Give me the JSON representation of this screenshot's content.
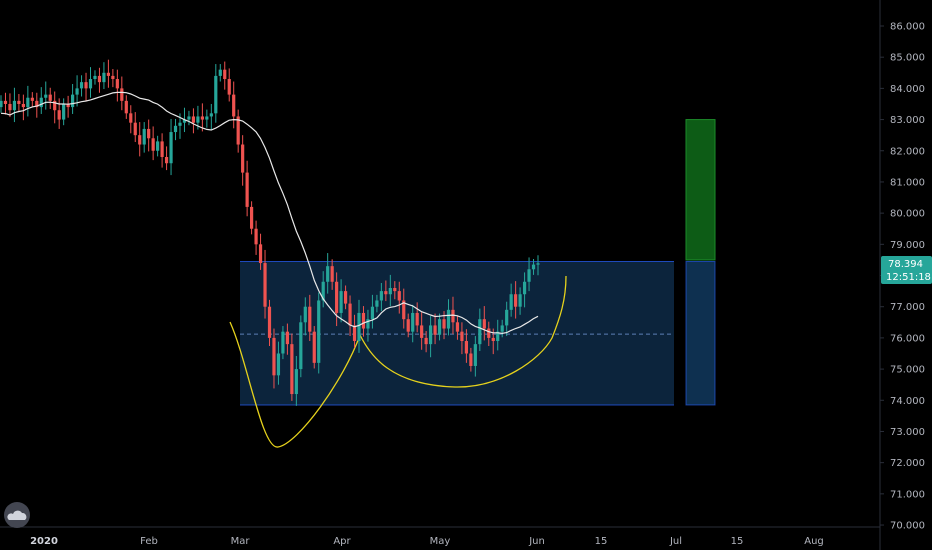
{
  "chart_data": {
    "type": "candlestick",
    "y_axis": {
      "range": [
        69.7,
        86.7
      ],
      "ticks": [
        "86.000",
        "85.000",
        "84.000",
        "83.000",
        "82.000",
        "81.000",
        "80.000",
        "79.000",
        "78.000",
        "77.000",
        "76.000",
        "75.000",
        "74.000",
        "73.000",
        "72.000",
        "71.000",
        "70.000"
      ]
    },
    "x_axis": {
      "ticks": [
        {
          "label": "2020",
          "bold": true
        },
        {
          "label": "Feb",
          "bold": false
        },
        {
          "label": "Mar",
          "bold": false
        },
        {
          "label": "Apr",
          "bold": false
        },
        {
          "label": "May",
          "bold": false
        },
        {
          "label": "Jun",
          "bold": false
        },
        {
          "label": "15",
          "bold": false
        },
        {
          "label": "Jul",
          "bold": false
        },
        {
          "label": "15",
          "bold": false
        },
        {
          "label": "Aug",
          "bold": false
        }
      ]
    },
    "last_price": {
      "value": "78.394",
      "countdown": "12:51:18"
    },
    "colors": {
      "up": "#26a69a",
      "down": "#ef5350",
      "ma": "#e8e8e8",
      "box_fill": "#0e2a47",
      "box_border": "#2962ff",
      "pattern": "#e6d21c",
      "target_green": "#0d5c16",
      "price_tag": "#26a69a"
    },
    "range_box": {
      "top": 78.45,
      "bottom": 73.85,
      "mid": 76.12
    },
    "target_bar": {
      "green_top": 83.0,
      "green_bottom": 78.5,
      "blue_top": 78.45,
      "blue_bottom": 73.85
    }
  }
}
